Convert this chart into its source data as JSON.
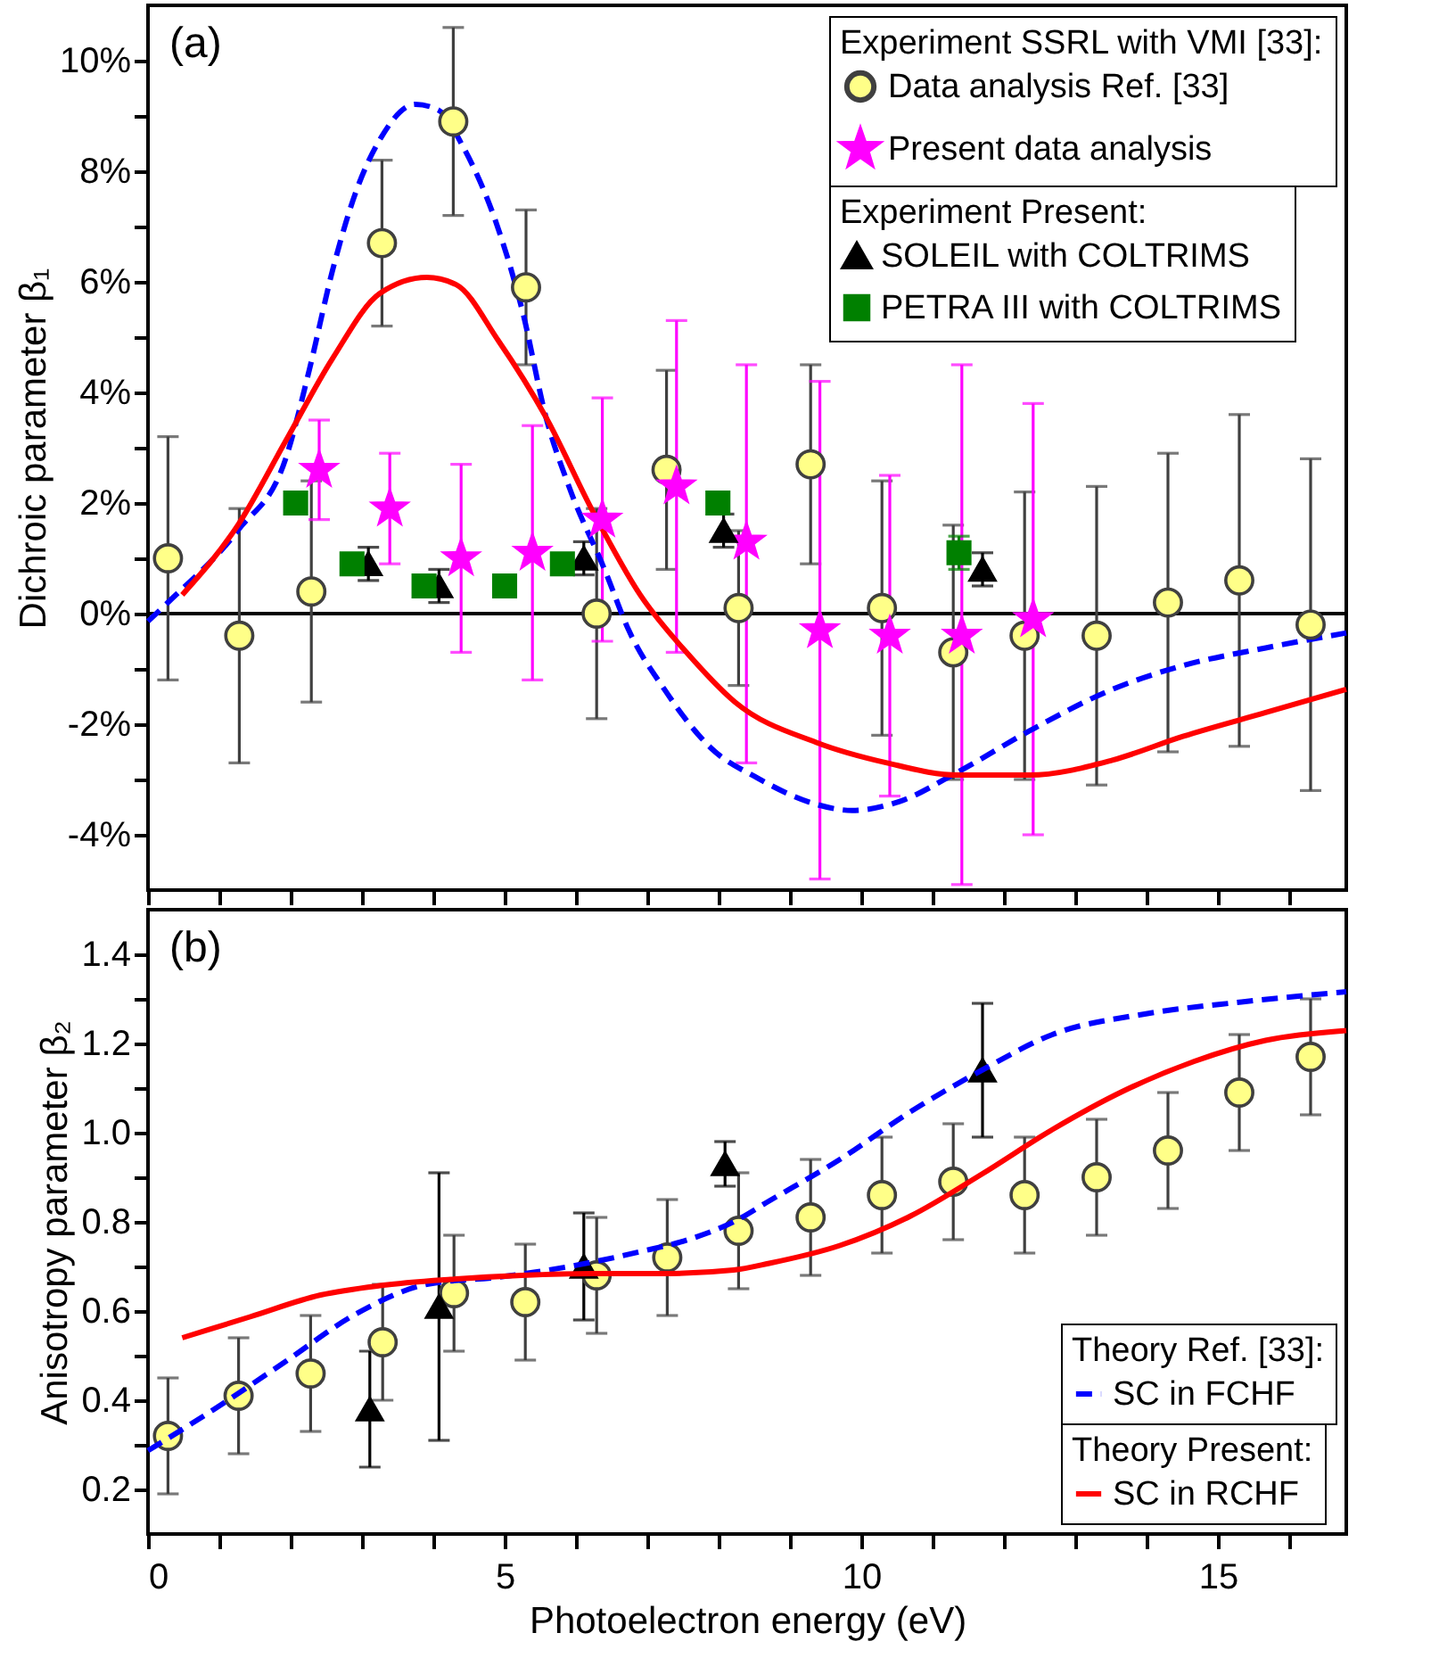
{
  "chart_data": [
    {
      "type": "scatter",
      "ylabel": "Dichroic parameter β₁",
      "annotations": [
        "(a)",
        "Experiment SSRL with VMI [33]:",
        "Experiment Present:"
      ],
      "xlim": [
        0,
        16.8
      ],
      "xticks": [
        0,
        {
          "value": 1,
          "label": null
        },
        {
          "value": 2,
          "label": null
        },
        {
          "value": 3,
          "label": null
        },
        {
          "value": 4,
          "label": null
        },
        5,
        {
          "value": 6,
          "label": null
        },
        {
          "value": 7,
          "label": null
        },
        {
          "value": 8,
          "label": null
        },
        {
          "value": 9,
          "label": null
        },
        10,
        {
          "value": 11,
          "label": null
        },
        {
          "value": 12,
          "label": null
        },
        {
          "value": 13,
          "label": null
        },
        {
          "value": 14,
          "label": null
        },
        15,
        {
          "value": 16,
          "label": null
        }
      ],
      "ylim": [
        -5,
        11
      ],
      "yticks": [
        {
          "value": -4,
          "label": "-4%"
        },
        {
          "value": -3,
          "label": null
        },
        {
          "value": -2,
          "label": "-2%"
        },
        {
          "value": -1,
          "label": null
        },
        {
          "value": 0,
          "label": "0%"
        },
        {
          "value": 1,
          "label": null
        },
        {
          "value": 2,
          "label": "2%"
        },
        {
          "value": 3,
          "label": null
        },
        {
          "value": 4,
          "label": "4%"
        },
        {
          "value": 5,
          "label": null
        },
        {
          "value": 6,
          "label": "6%"
        },
        {
          "value": 7,
          "label": null
        },
        {
          "value": 8,
          "label": "8%"
        },
        {
          "value": 9,
          "label": null
        },
        {
          "value": 10,
          "label": "10%"
        }
      ],
      "tick_labels": "y",
      "legend": "top right",
      "ref_lines": [
        {
          "axis": "y",
          "value": 0,
          "color": "#000000"
        }
      ],
      "series": [
        {
          "name": "Data analysis Ref. [33]",
          "marker": "circle",
          "color": "#ffff88",
          "x": [
            0.28,
            1.28,
            2.29,
            3.28,
            4.28,
            5.3,
            6.29,
            7.27,
            8.28,
            9.29,
            10.29,
            11.29,
            12.29,
            13.3,
            14.3,
            15.3,
            16.3
          ],
          "values": [
            1.0,
            -0.4,
            0.4,
            6.7,
            8.9,
            5.9,
            0.0,
            2.6,
            0.1,
            2.7,
            0.1,
            -0.7,
            -0.4,
            -0.4,
            0.2,
            0.6,
            -0.2
          ],
          "errors": [
            2.2,
            2.3,
            2.0,
            1.5,
            1.7,
            1.4,
            1.9,
            1.8,
            1.4,
            1.8,
            2.3,
            2.3,
            2.6,
            2.7,
            2.7,
            3.0,
            3.0
          ]
        },
        {
          "name": "Present data analysis",
          "marker": "star",
          "color": "#ff00ff",
          "x": [
            2.4,
            3.39,
            4.39,
            5.39,
            6.37,
            7.41,
            8.39,
            9.42,
            10.4,
            11.41,
            12.41
          ],
          "values": [
            2.6,
            1.9,
            1.0,
            1.1,
            1.7,
            2.3,
            1.3,
            -0.3,
            -0.4,
            -0.4,
            -0.1
          ],
          "errors": [
            0.9,
            1.0,
            1.7,
            2.3,
            2.2,
            3.0,
            [
              -2.7,
              4.5
            ],
            4.5,
            2.9,
            [
              -4.9,
              4.5
            ],
            3.9
          ]
        },
        {
          "name": "SOLEIL with COLTRIMS",
          "marker": "triangle",
          "color": "#000000",
          "x": [
            3.09,
            4.08,
            6.11,
            8.07,
            11.7
          ],
          "values": [
            0.9,
            0.5,
            1.0,
            1.5,
            0.8
          ],
          "errors": [
            0.3,
            0.3,
            0.3,
            0.3,
            0.3
          ]
        },
        {
          "name": "PETRA III with COLTRIMS",
          "marker": "square",
          "color": "#008000",
          "x": [
            2.07,
            2.86,
            3.87,
            5.0,
            5.81,
            7.99,
            11.37
          ],
          "values": [
            2.0,
            0.9,
            0.5,
            0.5,
            0.9,
            2.0,
            1.1
          ],
          "errors": [
            null,
            null,
            null,
            null,
            null,
            null,
            0.3
          ]
        },
        {
          "type": "line",
          "line_style": "dashed",
          "marker": "none",
          "color": "#0000ff",
          "x": [
            0.0,
            0.27,
            1.27,
            1.93,
            2.26,
            2.59,
            2.91,
            3.25,
            3.75,
            4.08,
            4.41,
            4.91,
            5.25,
            5.58,
            5.91,
            6.41,
            6.74,
            7.24,
            7.9,
            8.54,
            9.37,
            9.87,
            10.53,
            11.36,
            12.36,
            13.52,
            14.51,
            15.67,
            16.8
          ],
          "values": [
            -0.14,
            0.19,
            1.52,
            2.8,
            4.4,
            6.22,
            7.61,
            8.57,
            9.21,
            9.1,
            8.46,
            6.96,
            5.47,
            3.55,
            2.27,
            0.77,
            -0.3,
            -1.37,
            -2.44,
            -2.97,
            -3.45,
            -3.56,
            -3.4,
            -2.86,
            -2.12,
            -1.37,
            -0.94,
            -0.62,
            -0.35
          ]
        },
        {
          "type": "line",
          "line_style": "solid",
          "marker": "none",
          "color": "#ff0000",
          "x": [
            0.48,
            1.27,
            1.93,
            2.59,
            3.25,
            3.91,
            4.32,
            4.91,
            5.58,
            6.24,
            6.9,
            7.57,
            8.23,
            9.37,
            10.36,
            11.36,
            12.36,
            13.52,
            14.51,
            15.67,
            16.8
          ],
          "values": [
            0.34,
            1.62,
            3.12,
            4.62,
            5.79,
            6.08,
            5.95,
            4.94,
            3.55,
            1.84,
            0.34,
            -0.73,
            -1.6,
            -2.33,
            -2.7,
            -2.92,
            -2.92,
            -2.65,
            -2.22,
            -1.79,
            -1.37
          ]
        }
      ]
    },
    {
      "type": "scatter",
      "xlabel": "Photoelectron energy (eV)",
      "ylabel": "Anisotropy parameter β₂",
      "annotations": [
        "(b)",
        "Theory Ref. [33]:",
        "Theory Present:"
      ],
      "xlim": [
        0,
        16.8
      ],
      "xticks": [
        0,
        {
          "value": 1,
          "label": null
        },
        {
          "value": 2,
          "label": null
        },
        {
          "value": 3,
          "label": null
        },
        {
          "value": 4,
          "label": null
        },
        5,
        {
          "value": 6,
          "label": null
        },
        {
          "value": 7,
          "label": null
        },
        {
          "value": 8,
          "label": null
        },
        {
          "value": 9,
          "label": null
        },
        10,
        {
          "value": 11,
          "label": null
        },
        {
          "value": 12,
          "label": null
        },
        {
          "value": 13,
          "label": null
        },
        {
          "value": 14,
          "label": null
        },
        15,
        {
          "value": 16,
          "label": null
        }
      ],
      "ylim": [
        0.1,
        1.5
      ],
      "yticks": [
        0.2,
        {
          "value": 0.3,
          "label": null
        },
        0.4,
        {
          "value": 0.5,
          "label": null
        },
        0.6,
        {
          "value": 0.7,
          "label": null
        },
        0.8,
        {
          "value": 0.9,
          "label": null
        },
        {
          "value": 1.0,
          "label": "1.0"
        },
        {
          "value": 1.1,
          "label": null
        },
        1.2,
        {
          "value": 1.3,
          "label": null
        },
        1.4
      ],
      "legend": "bottom right",
      "series": [
        {
          "marker": "circle",
          "color": "#ffff88",
          "x": [
            0.28,
            1.27,
            2.28,
            3.29,
            4.29,
            5.29,
            6.29,
            7.28,
            8.28,
            9.29,
            10.29,
            11.29,
            12.29,
            13.3,
            14.3,
            15.3,
            16.3
          ],
          "values": [
            0.32,
            0.41,
            0.46,
            0.53,
            0.64,
            0.62,
            0.68,
            0.72,
            0.78,
            0.81,
            0.86,
            0.89,
            0.86,
            0.9,
            0.96,
            1.09,
            1.17
          ],
          "errors": [
            0.13,
            0.13,
            0.13,
            0.13,
            0.13,
            0.13,
            0.13,
            0.13,
            0.13,
            0.13,
            0.13,
            0.13,
            0.13,
            0.13,
            0.13,
            0.13,
            0.13
          ]
        },
        {
          "marker": "triangle",
          "color": "#000000",
          "x": [
            3.11,
            4.08,
            6.11,
            8.09,
            11.7
          ],
          "values": [
            0.38,
            0.61,
            0.7,
            0.93,
            1.14
          ],
          "errors": [
            0.13,
            0.3,
            0.12,
            0.05,
            0.15
          ]
        },
        {
          "name": "SC in FCHF",
          "type": "line",
          "line_style": "dashed",
          "marker": "none",
          "color": "#0000ff",
          "x": [
            0.0,
            0.93,
            1.93,
            2.91,
            3.91,
            4.91,
            5.91,
            6.9,
            7.57,
            8.21,
            8.71,
            9.7,
            10.69,
            11.69,
            12.68,
            14.01,
            15.33,
            16.8
          ],
          "values": [
            0.287,
            0.38,
            0.487,
            0.593,
            0.66,
            0.676,
            0.7,
            0.733,
            0.76,
            0.8,
            0.847,
            0.94,
            1.047,
            1.14,
            1.22,
            1.267,
            1.293,
            1.316
          ]
        },
        {
          "name": "SC in RCHF",
          "type": "line",
          "line_style": "solid",
          "marker": "none",
          "color": "#ff0000",
          "x": [
            0.48,
            1.43,
            2.42,
            3.25,
            4.24,
            5.24,
            6.23,
            7.22,
            8.21,
            8.71,
            9.7,
            10.69,
            11.69,
            12.68,
            13.67,
            14.67,
            15.67,
            16.8
          ],
          "values": [
            0.54,
            0.587,
            0.636,
            0.657,
            0.671,
            0.68,
            0.684,
            0.684,
            0.692,
            0.707,
            0.747,
            0.813,
            0.907,
            1.007,
            1.093,
            1.16,
            1.207,
            1.229
          ]
        }
      ]
    }
  ]
}
